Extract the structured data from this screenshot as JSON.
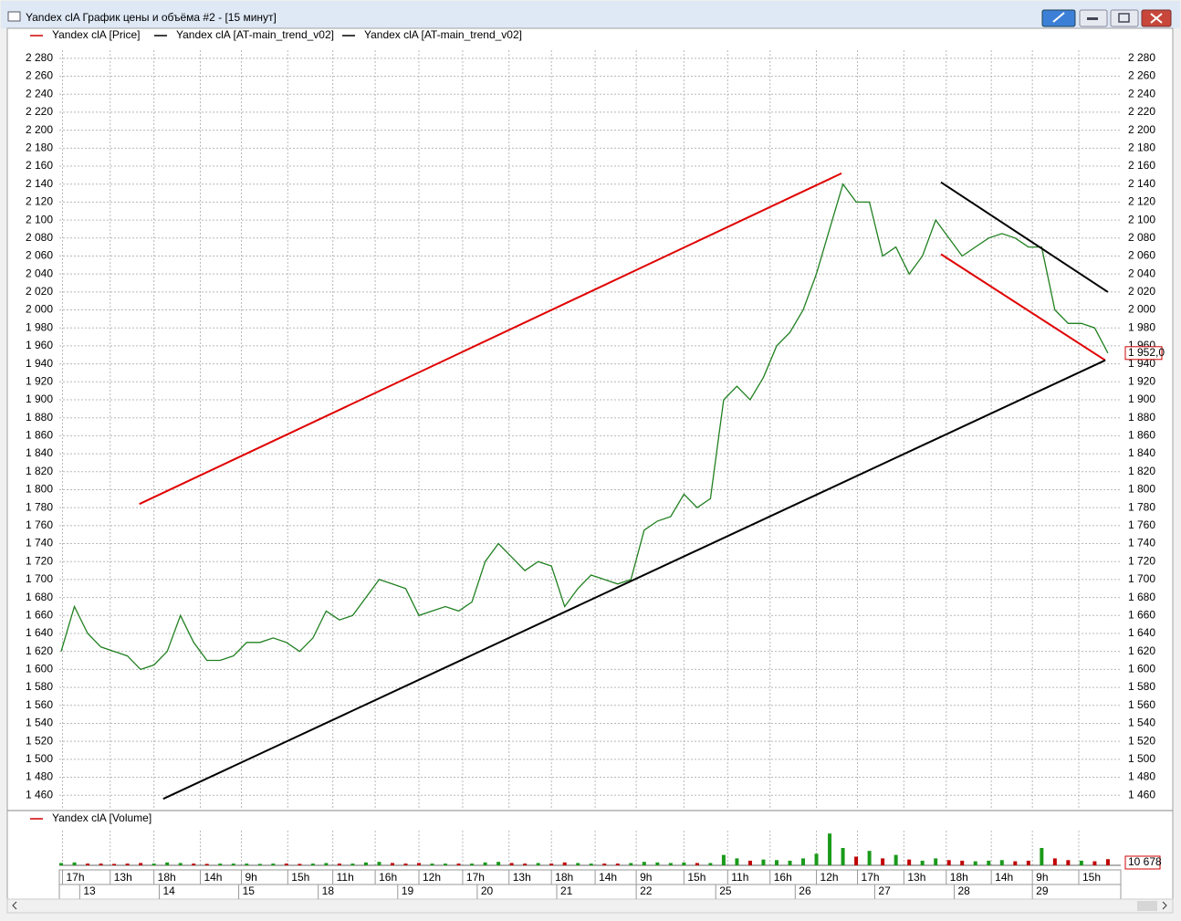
{
  "window": {
    "title": "Yandex clA График цены и объёма #2 - [15 минут]"
  },
  "chart_data": [
    {
      "type": "line",
      "series": [
        {
          "name": "Yandex clA [Price]",
          "color": "#d00000",
          "line_color": "#208020",
          "values": [
            1620,
            1670,
            1640,
            1625,
            1620,
            1615,
            1600,
            1605,
            1620,
            1660,
            1630,
            1610,
            1610,
            1615,
            1630,
            1630,
            1635,
            1630,
            1620,
            1635,
            1665,
            1655,
            1660,
            1680,
            1700,
            1695,
            1690,
            1660,
            1665,
            1670,
            1665,
            1675,
            1720,
            1740,
            1725,
            1710,
            1720,
            1715,
            1670,
            1690,
            1705,
            1700,
            1695,
            1700,
            1755,
            1765,
            1770,
            1795,
            1780,
            1790,
            1900,
            1915,
            1900,
            1925,
            1960,
            1975,
            2000,
            2040,
            2090,
            2140,
            2120,
            2120,
            2060,
            2070,
            2040,
            2060,
            2100,
            2080,
            2060,
            2070,
            2080,
            2085,
            2080,
            2070,
            2070,
            2000,
            1985,
            1985,
            1980,
            1952
          ],
          "value_labels": [
            null,
            null,
            null,
            null,
            null,
            null,
            null,
            null,
            null,
            null,
            null,
            null,
            null,
            null,
            null,
            null,
            null,
            null,
            null,
            null,
            null,
            null,
            null,
            null,
            null,
            null,
            null,
            null,
            null,
            null,
            null,
            null,
            null,
            null,
            null,
            null,
            null,
            null,
            null,
            null,
            null,
            null,
            null,
            null,
            null,
            null,
            null,
            null,
            null,
            null,
            null,
            null,
            null,
            null,
            null,
            null,
            null,
            null,
            null,
            null,
            null,
            null,
            null,
            null,
            null,
            null,
            null,
            null,
            null,
            null,
            null,
            null,
            null,
            null,
            null,
            null,
            null,
            null,
            null,
            "1 952,0"
          ]
        },
        {
          "name": "Yandex clA [AT-main_trend_v02]",
          "color": "#000000",
          "line_color": "#e00000",
          "lines": [
            {
              "x": [
                5.9,
                58.9
              ],
              "values": [
                1784,
                2152
              ]
            },
            {
              "x": [
                66.4,
                78.8
              ],
              "values": [
                2062,
                1944
              ]
            }
          ]
        },
        {
          "name": "Yandex clA [AT-main_trend_v02]",
          "color": "#000000",
          "line_color": "#000000",
          "lines": [
            {
              "x": [
                7.7,
                78.8
              ],
              "values": [
                1456,
                1944
              ]
            },
            {
              "x": [
                66.4,
                79.0
              ],
              "values": [
                2142,
                2020
              ]
            }
          ]
        }
      ],
      "xlim": [
        -0.14,
        79.97
      ],
      "ylim": [
        1446,
        2289
      ],
      "grid": true,
      "yticks": [
        {
          "value": 1460,
          "label": "1 460"
        },
        {
          "value": 1480,
          "label": "1 480"
        },
        {
          "value": 1500,
          "label": "1 500"
        },
        {
          "value": 1520,
          "label": "1 520"
        },
        {
          "value": 1540,
          "label": "1 540"
        },
        {
          "value": 1560,
          "label": "1 560"
        },
        {
          "value": 1580,
          "label": "1 580"
        },
        {
          "value": 1600,
          "label": "1 600"
        },
        {
          "value": 1620,
          "label": "1 620"
        },
        {
          "value": 1640,
          "label": "1 640"
        },
        {
          "value": 1660,
          "label": "1 660"
        },
        {
          "value": 1680,
          "label": "1 680"
        },
        {
          "value": 1700,
          "label": "1 700"
        },
        {
          "value": 1720,
          "label": "1 720"
        },
        {
          "value": 1740,
          "label": "1 740"
        },
        {
          "value": 1760,
          "label": "1 760"
        },
        {
          "value": 1780,
          "label": "1 780"
        },
        {
          "value": 1800,
          "label": "1 800"
        },
        {
          "value": 1820,
          "label": "1 820"
        },
        {
          "value": 1840,
          "label": "1 840"
        },
        {
          "value": 1860,
          "label": "1 860"
        },
        {
          "value": 1880,
          "label": "1 880"
        },
        {
          "value": 1900,
          "label": "1 900"
        },
        {
          "value": 1920,
          "label": "1 920"
        },
        {
          "value": 1940,
          "label": "1 940"
        },
        {
          "value": 1960,
          "label": "1 960"
        },
        {
          "value": 1980,
          "label": "1 980"
        },
        {
          "value": 2000,
          "label": "2 000"
        },
        {
          "value": 2020,
          "label": "2 020"
        },
        {
          "value": 2040,
          "label": "2 040"
        },
        {
          "value": 2060,
          "label": "2 060"
        },
        {
          "value": 2080,
          "label": "2 080"
        },
        {
          "value": 2100,
          "label": "2 100"
        },
        {
          "value": 2120,
          "label": "2 120"
        },
        {
          "value": 2140,
          "label": "2 140"
        },
        {
          "value": 2160,
          "label": "2 160"
        },
        {
          "value": 2180,
          "label": "2 180"
        },
        {
          "value": 2200,
          "label": "2 200"
        },
        {
          "value": 2220,
          "label": "2 220"
        },
        {
          "value": 2240,
          "label": "2 240"
        },
        {
          "value": 2260,
          "label": "2 260"
        },
        {
          "value": 2280,
          "label": "2 280"
        }
      ],
      "xticks": [
        {
          "value": 0.1,
          "label": "17h"
        },
        {
          "value": 3.7,
          "label": "13h"
        },
        {
          "value": 7.0,
          "label": "18h"
        },
        {
          "value": 10.5,
          "label": "14h"
        },
        {
          "value": 13.6,
          "label": "9h"
        },
        {
          "value": 17.1,
          "label": "15h"
        },
        {
          "value": 20.5,
          "label": "11h"
        },
        {
          "value": 23.7,
          "label": "16h"
        },
        {
          "value": 27.0,
          "label": "12h"
        },
        {
          "value": 30.3,
          "label": "17h"
        },
        {
          "value": 33.8,
          "label": "13h"
        },
        {
          "value": 37.0,
          "label": "18h"
        },
        {
          "value": 40.3,
          "label": "14h"
        },
        {
          "value": 43.4,
          "label": "9h"
        },
        {
          "value": 47.0,
          "label": "15h"
        },
        {
          "value": 50.3,
          "label": "11h"
        },
        {
          "value": 53.5,
          "label": "16h"
        },
        {
          "value": 57.0,
          "label": "12h"
        },
        {
          "value": 60.1,
          "label": "17h"
        },
        {
          "value": 63.6,
          "label": "13h"
        },
        {
          "value": 66.8,
          "label": "18h"
        },
        {
          "value": 70.2,
          "label": "14h"
        },
        {
          "value": 73.3,
          "label": "9h"
        },
        {
          "value": 76.8,
          "label": "15h"
        }
      ],
      "day_ticks": [
        {
          "value": 1.4,
          "label": "13"
        },
        {
          "value": 7.4,
          "label": "14"
        },
        {
          "value": 13.4,
          "label": "15"
        },
        {
          "value": 19.4,
          "label": "18"
        },
        {
          "value": 25.4,
          "label": "19"
        },
        {
          "value": 31.4,
          "label": "20"
        },
        {
          "value": 37.4,
          "label": "21"
        },
        {
          "value": 43.4,
          "label": "22"
        },
        {
          "value": 49.4,
          "label": "25"
        },
        {
          "value": 55.4,
          "label": "26"
        },
        {
          "value": 61.4,
          "label": "27"
        },
        {
          "value": 67.4,
          "label": "28"
        },
        {
          "value": 73.3,
          "label": "29"
        }
      ]
    },
    {
      "type": "bar",
      "series": [
        {
          "name": "Yandex clA [Volume]",
          "color": "#d00000",
          "up_color": "#1a9a1a",
          "down_color": "#c00000",
          "values": [
            4000,
            5000,
            3000,
            3000,
            2500,
            3000,
            4000,
            3000,
            5000,
            4000,
            3000,
            2500,
            3000,
            3000,
            3000,
            2500,
            3000,
            3000,
            2500,
            3000,
            4000,
            3000,
            3000,
            5000,
            6000,
            4000,
            3000,
            4000,
            3000,
            3000,
            3000,
            3000,
            5000,
            6000,
            4000,
            3000,
            4000,
            3000,
            5000,
            4000,
            3000,
            3000,
            3000,
            4000,
            6000,
            5000,
            4000,
            5000,
            4000,
            4000,
            18000,
            12000,
            8000,
            10000,
            9000,
            8000,
            12000,
            20000,
            55000,
            30000,
            15000,
            25000,
            12000,
            18000,
            10000,
            8000,
            12000,
            9000,
            8000,
            7000,
            8000,
            9000,
            7000,
            8000,
            30000,
            12000,
            9000,
            8000,
            7000,
            10678
          ],
          "value_labels": [
            null,
            null,
            null,
            null,
            null,
            null,
            null,
            null,
            null,
            null,
            null,
            null,
            null,
            null,
            null,
            null,
            null,
            null,
            null,
            null,
            null,
            null,
            null,
            null,
            null,
            null,
            null,
            null,
            null,
            null,
            null,
            null,
            null,
            null,
            null,
            null,
            null,
            null,
            null,
            null,
            null,
            null,
            null,
            null,
            null,
            null,
            null,
            null,
            null,
            null,
            null,
            null,
            null,
            null,
            null,
            null,
            null,
            null,
            null,
            null,
            null,
            null,
            null,
            null,
            null,
            null,
            null,
            null,
            null,
            null,
            null,
            null,
            null,
            null,
            null,
            null,
            null,
            null,
            null,
            "10 678"
          ]
        }
      ],
      "xlim": [
        -0.14,
        79.97
      ],
      "ylim": [
        0,
        60000
      ]
    }
  ]
}
